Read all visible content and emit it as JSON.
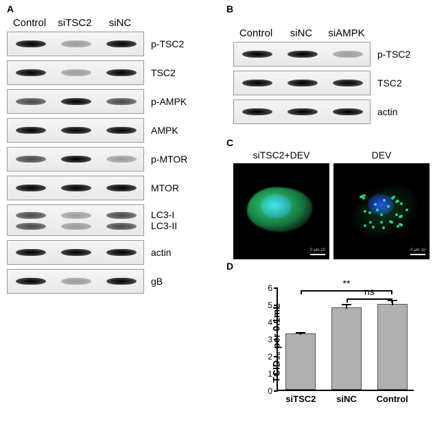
{
  "panelA": {
    "letter": "A",
    "columns": [
      "Control",
      "siTSC2",
      "siNC"
    ],
    "rows": [
      {
        "label": "p-TSC2",
        "bands": [
          "strong",
          "faint",
          "strong"
        ]
      },
      {
        "label": "TSC2",
        "bands": [
          "strong",
          "faint",
          "strong"
        ]
      },
      {
        "label": "p-AMPK",
        "bands": [
          "med",
          "strong",
          "med"
        ]
      },
      {
        "label": "AMPK",
        "bands": [
          "strong",
          "strong",
          "strong"
        ]
      },
      {
        "label": "p-MTOR",
        "bands": [
          "med",
          "strong",
          "faint"
        ]
      },
      {
        "label": "MTOR",
        "bands": [
          "strong",
          "strong",
          "strong"
        ]
      },
      {
        "label": "LC3-I",
        "bands": [
          "med",
          "faint",
          "med"
        ],
        "double": true,
        "label2": "LC3-II",
        "bands2": [
          "med",
          "faint",
          "med"
        ]
      },
      {
        "label": "actin",
        "bands": [
          "strong",
          "strong",
          "strong"
        ]
      },
      {
        "label": "gB",
        "bands": [
          "strong",
          "faint",
          "strong"
        ]
      }
    ]
  },
  "panelB": {
    "letter": "B",
    "columns": [
      "Control",
      "siNC",
      "siAMPK"
    ],
    "rows": [
      {
        "label": "p-TSC2",
        "bands": [
          "strong",
          "strong",
          "faint"
        ]
      },
      {
        "label": "TSC2",
        "bands": [
          "strong",
          "strong",
          "strong"
        ]
      },
      {
        "label": "actin",
        "bands": [
          "strong",
          "strong",
          "strong"
        ]
      }
    ]
  },
  "panelC": {
    "letter": "C",
    "labels": [
      "siTSC2+DEV",
      "DEV"
    ],
    "images": [
      {
        "cell_color": "#2de07a",
        "nucleus_color": "#1a3ae0",
        "diffuse": true
      },
      {
        "cell_color": "#2de07a",
        "nucleus_color": "#1a3ae0",
        "diffuse": false
      }
    ],
    "scalebar_text": "0  μm  10"
  },
  "panelD": {
    "letter": "D",
    "ylabel": "TCID₅₀ per 0.1mL",
    "ylim": [
      0,
      6
    ],
    "ytick_step": 1,
    "categories": [
      "siTSC2",
      "siNC",
      "Control"
    ],
    "values": [
      3.3,
      4.8,
      5.0
    ],
    "errors": [
      0.12,
      0.25,
      0.3
    ],
    "bar_color": "#b0b0b0",
    "sig": [
      {
        "from": 1,
        "to": 2,
        "label": "ns",
        "y": 5.4
      },
      {
        "from": 0,
        "to": 2,
        "label": "**",
        "y": 5.9
      }
    ]
  }
}
